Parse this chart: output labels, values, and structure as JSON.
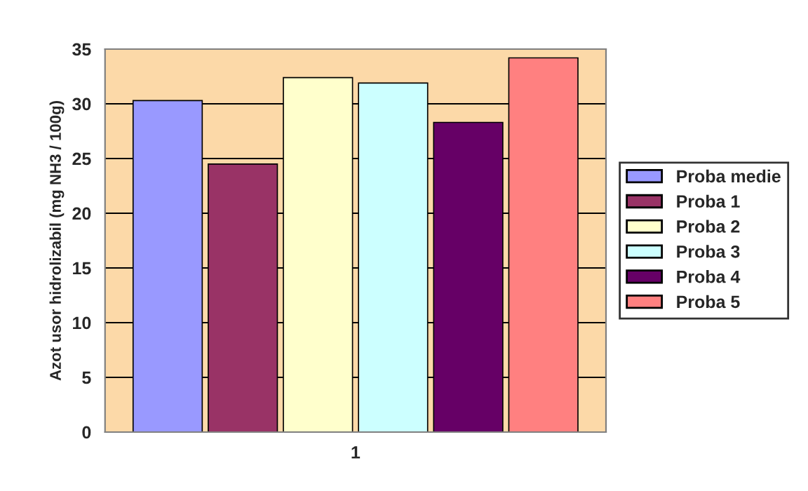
{
  "chart_data": {
    "type": "bar",
    "ylabel": "Azot usor hidrolizabil (mg NH3 / 100g)",
    "categories": [
      "1"
    ],
    "series": [
      {
        "name": "Proba medie",
        "color": "#9999ff",
        "values": [
          30.3
        ]
      },
      {
        "name": "Proba 1",
        "color": "#993366",
        "values": [
          24.5
        ]
      },
      {
        "name": "Proba 2",
        "color": "#ffffcc",
        "values": [
          32.4
        ]
      },
      {
        "name": "Proba 3",
        "color": "#ccffff",
        "values": [
          31.9
        ]
      },
      {
        "name": "Proba 4",
        "color": "#660066",
        "values": [
          28.3
        ]
      },
      {
        "name": "Proba 5",
        "color": "#ff8080",
        "values": [
          34.2
        ]
      }
    ],
    "ylim": [
      0,
      35
    ],
    "yticks": [
      0,
      5,
      10,
      15,
      20,
      25,
      30,
      35
    ],
    "grid": "y",
    "legend": "right"
  }
}
